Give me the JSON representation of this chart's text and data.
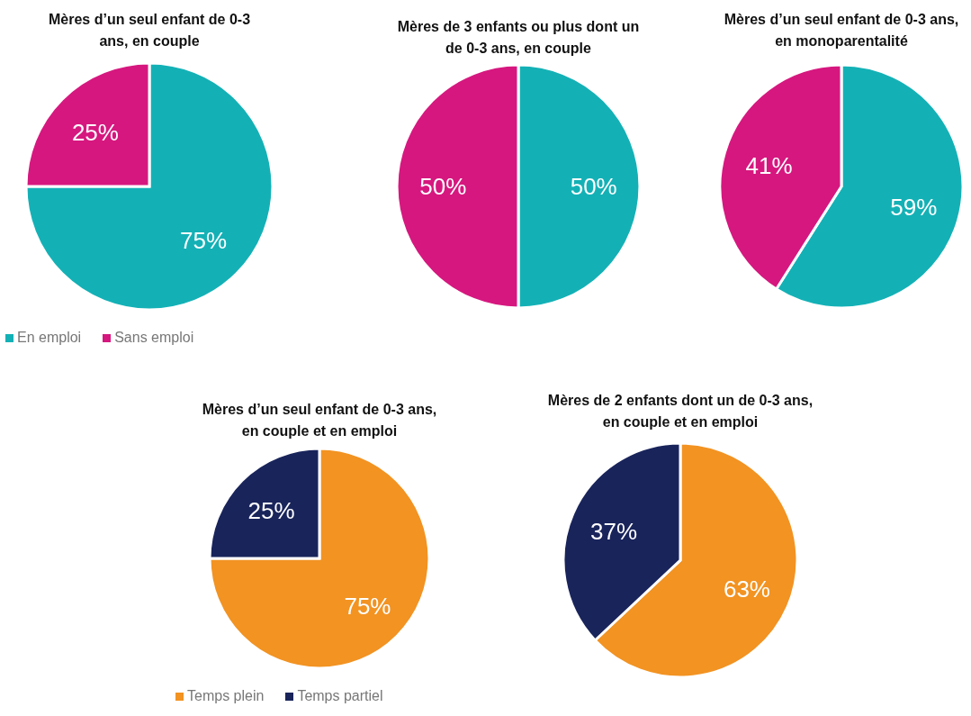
{
  "chart_data": [
    {
      "type": "pie",
      "title": "Mères d’un seul enfant de 0-3 ans, en couple",
      "categories": [
        "En emploi",
        "Sans emploi"
      ],
      "values": [
        75,
        25
      ],
      "colors": [
        "#13b1b6",
        "#d6177f"
      ],
      "value_labels": [
        "75%",
        "25%"
      ],
      "legend": "bottom left"
    },
    {
      "type": "pie",
      "title": "Mères de 3 enfants ou plus dont un de 0-3 ans, en couple",
      "categories": [
        null,
        null
      ],
      "values": [
        50,
        50
      ],
      "colors": [
        "#13b1b6",
        "#d6177f"
      ],
      "value_labels": [
        "50%",
        "50%"
      ]
    },
    {
      "type": "pie",
      "title": "Mères d’un seul enfant de 0-3 ans, en monoparentalité",
      "categories": [
        null,
        null
      ],
      "values": [
        59,
        41
      ],
      "colors": [
        "#13b1b6",
        "#d6177f"
      ],
      "value_labels": [
        "59%",
        "41%"
      ]
    },
    {
      "type": "pie",
      "title": "Mères d’un seul enfant de 0-3 ans, en couple et en emploi",
      "categories": [
        "Temps plein",
        "Temps partiel"
      ],
      "values": [
        75,
        25
      ],
      "colors": [
        "#f29322",
        "#19245b"
      ],
      "value_labels": [
        "75%",
        "25%"
      ],
      "legend": "bottom left"
    },
    {
      "type": "pie",
      "title": "Mères de 2 enfants dont un de 0-3 ans, en couple et en emploi",
      "categories": [
        null,
        null
      ],
      "values": [
        63,
        37
      ],
      "colors": [
        "#f29322",
        "#19245b"
      ],
      "value_labels": [
        "63%",
        "37%"
      ]
    }
  ]
}
